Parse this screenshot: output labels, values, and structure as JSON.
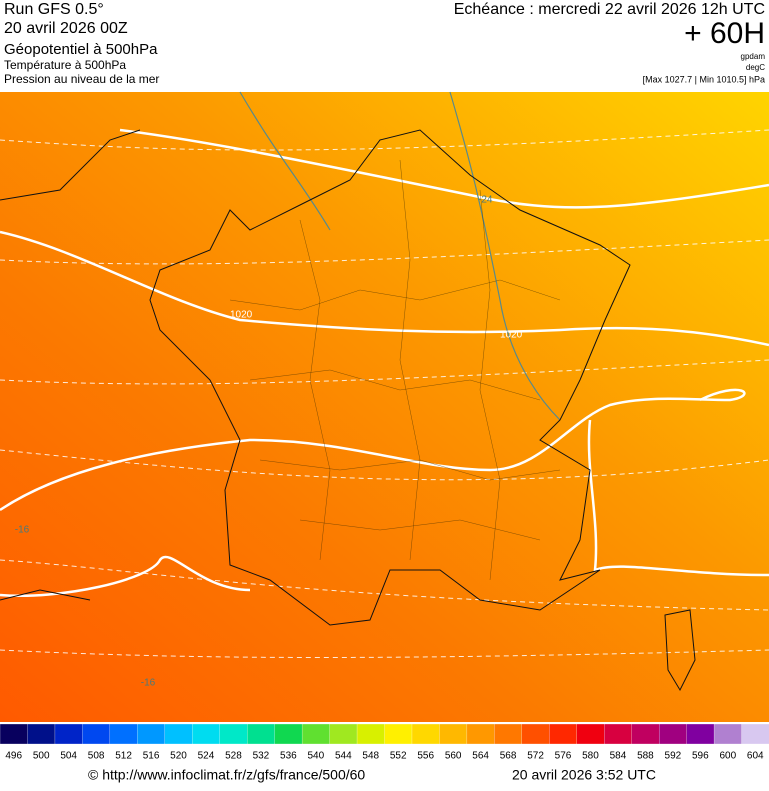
{
  "header": {
    "run": "Run GFS 0.5°",
    "date": "20 avril 2026 00Z",
    "field": "Géopotentiel à 500hPa",
    "layer2": "Température à 500hPa",
    "layer3": "Pression au niveau de la mer",
    "forecast": "Echéance : mercredi 22 avril 2026 12h UTC",
    "lead": "+ 60H",
    "unit1": "gpdam",
    "unit2": "degC",
    "range": "[Max 1027.7 | Min 1010.5] hPa"
  },
  "map": {
    "contour_labels": [
      "1020",
      "1020",
      "-24",
      "-16",
      "-16"
    ]
  },
  "colorbar": {
    "labels": [
      496,
      500,
      504,
      508,
      512,
      516,
      520,
      524,
      528,
      532,
      536,
      540,
      544,
      548,
      552,
      556,
      560,
      564,
      568,
      572,
      576,
      580,
      584,
      588,
      592,
      596,
      600,
      604
    ],
    "colors": [
      "#08005e",
      "#00108a",
      "#0024c8",
      "#0048f0",
      "#0070ff",
      "#0098ff",
      "#00c0ff",
      "#00dcf0",
      "#00e8c8",
      "#00e090",
      "#10d850",
      "#60e030",
      "#a0e820",
      "#d8f000",
      "#fff000",
      "#ffd800",
      "#ffb800",
      "#ff9800",
      "#ff7800",
      "#ff5000",
      "#ff2800",
      "#f00010",
      "#d80040",
      "#c00060",
      "#a00080",
      "#8000a0",
      "#b080d0",
      "#d8c8f0"
    ]
  },
  "footer": {
    "url": "© http://www.infoclimat.fr/z/gfs/france/500/60",
    "timestamp": "20 avril 2026  3:52 UTC"
  }
}
